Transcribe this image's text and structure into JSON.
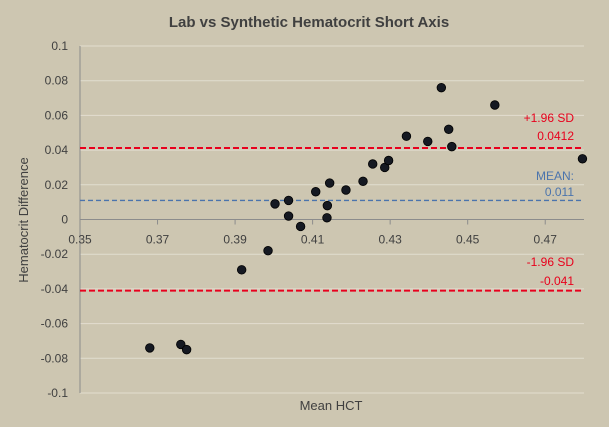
{
  "colors": {
    "background": "#cdc6b1",
    "grid": "#e2ddd0",
    "text": "#404040",
    "point": "#151922",
    "limit_line": "#e8001c",
    "mean_line": "#4b74ad"
  },
  "chart_data": {
    "type": "scatter",
    "title": "Lab vs Synthetic Hematocrit Short Axis",
    "xlabel": "Mean HCT",
    "ylabel": "Hematocrit Difference",
    "xlim": [
      0.35,
      0.48
    ],
    "ylim": [
      -0.1,
      0.1
    ],
    "x_ticks": [
      "0.35",
      "0.37",
      "0.39",
      "0.41",
      "0.43",
      "0.45",
      "0.47"
    ],
    "y_ticks": [
      "0.1",
      "0.08",
      "0.06",
      "0.04",
      "0.02",
      "0",
      "-0.02",
      "-0.04",
      "-0.06",
      "-0.08",
      "-0.1"
    ],
    "grid": "horizontal",
    "points": [
      {
        "x": 0.368,
        "y": -0.074
      },
      {
        "x": 0.376,
        "y": -0.072
      },
      {
        "x": 0.3775,
        "y": -0.075
      },
      {
        "x": 0.3917,
        "y": -0.029
      },
      {
        "x": 0.3985,
        "y": -0.018
      },
      {
        "x": 0.4003,
        "y": 0.009
      },
      {
        "x": 0.4038,
        "y": 0.011
      },
      {
        "x": 0.4038,
        "y": 0.002
      },
      {
        "x": 0.4069,
        "y": -0.004
      },
      {
        "x": 0.4108,
        "y": 0.016
      },
      {
        "x": 0.4137,
        "y": 0.001
      },
      {
        "x": 0.4138,
        "y": 0.008
      },
      {
        "x": 0.4144,
        "y": 0.021
      },
      {
        "x": 0.4186,
        "y": 0.017
      },
      {
        "x": 0.423,
        "y": 0.022
      },
      {
        "x": 0.4255,
        "y": 0.032
      },
      {
        "x": 0.4286,
        "y": 0.03
      },
      {
        "x": 0.4296,
        "y": 0.034
      },
      {
        "x": 0.4342,
        "y": 0.048
      },
      {
        "x": 0.4397,
        "y": 0.045
      },
      {
        "x": 0.4432,
        "y": 0.076
      },
      {
        "x": 0.4451,
        "y": 0.052
      },
      {
        "x": 0.4459,
        "y": 0.042
      },
      {
        "x": 0.457,
        "y": 0.066
      },
      {
        "x": 0.4796,
        "y": 0.035
      }
    ],
    "reference_lines": [
      {
        "name": "upper",
        "y": 0.0412,
        "style": "dashed",
        "labels": [
          "+1.96 SD",
          "0.0412"
        ]
      },
      {
        "name": "mean",
        "y": 0.011,
        "style": "dashed",
        "labels": [
          "MEAN:",
          "0.011"
        ]
      },
      {
        "name": "lower",
        "y": -0.041,
        "style": "dashed",
        "labels": [
          "-1.96 SD",
          "-0.041"
        ]
      }
    ]
  }
}
